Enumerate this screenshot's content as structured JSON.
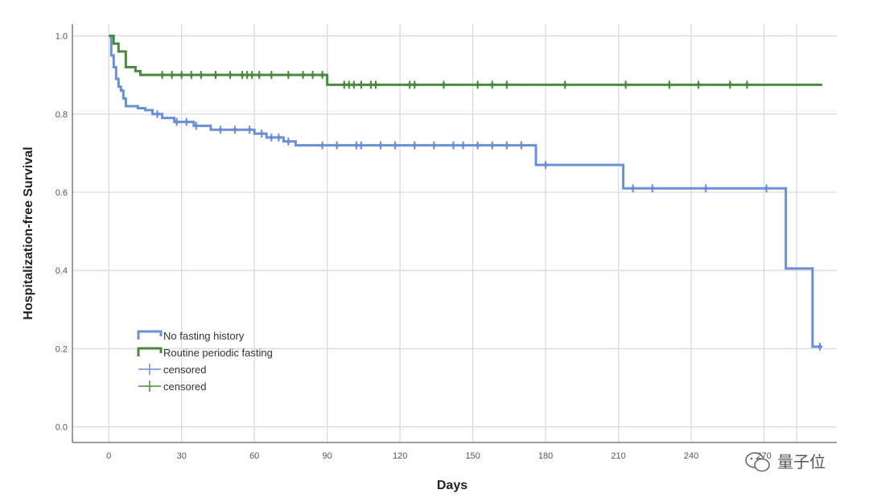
{
  "chart_data": {
    "type": "line",
    "step": true,
    "xlabel": "Days",
    "ylabel": "Hospitalization-free Survival",
    "xlim": [
      -15,
      300
    ],
    "ylim": [
      -0.04,
      1.03
    ],
    "x_ticks": [
      0,
      30,
      60,
      90,
      120,
      150,
      180,
      210,
      240,
      270
    ],
    "y_ticks": [
      0.0,
      0.2,
      0.4,
      0.6,
      0.8,
      1.0
    ],
    "x_tick_labels": [
      "0",
      "30",
      "60",
      "90",
      "120",
      "150",
      "180",
      "210",
      "240",
      "270"
    ],
    "y_tick_labels": [
      "0.0",
      "0.2",
      "0.4",
      "0.6",
      "0.8",
      "1.0"
    ],
    "grid": true,
    "legend_position": "bottom-left",
    "series": [
      {
        "name": "No fasting history",
        "color": "#6b8fd6",
        "steps": [
          [
            0,
            1.0
          ],
          [
            1,
            0.95
          ],
          [
            2,
            0.92
          ],
          [
            3,
            0.89
          ],
          [
            4,
            0.87
          ],
          [
            5,
            0.86
          ],
          [
            6,
            0.84
          ],
          [
            7,
            0.82
          ],
          [
            12,
            0.815
          ],
          [
            15,
            0.81
          ],
          [
            18,
            0.8
          ],
          [
            22,
            0.79
          ],
          [
            27,
            0.78
          ],
          [
            35,
            0.77
          ],
          [
            42,
            0.76
          ],
          [
            60,
            0.75
          ],
          [
            65,
            0.74
          ],
          [
            72,
            0.73
          ],
          [
            77,
            0.72
          ],
          [
            176,
            0.67
          ],
          [
            212,
            0.61
          ],
          [
            279,
            0.405
          ],
          [
            290,
            0.205
          ],
          [
            294,
            0.205
          ]
        ],
        "censored": [
          20,
          28,
          32,
          36,
          46,
          52,
          58,
          63,
          67,
          70,
          74,
          88,
          94,
          102,
          104,
          112,
          118,
          126,
          134,
          142,
          146,
          152,
          158,
          164,
          170,
          180,
          216,
          224,
          246,
          271,
          293
        ]
      },
      {
        "name": "Routine periodic fasting",
        "color": "#4a8a3c",
        "steps": [
          [
            0,
            1.0
          ],
          [
            2,
            0.98
          ],
          [
            4,
            0.96
          ],
          [
            7,
            0.92
          ],
          [
            11,
            0.91
          ],
          [
            13,
            0.9
          ],
          [
            90,
            0.875
          ],
          [
            294,
            0.875
          ]
        ],
        "censored": [
          22,
          26,
          30,
          34,
          38,
          44,
          50,
          55,
          57,
          59,
          62,
          67,
          74,
          80,
          84,
          88,
          97,
          99,
          101,
          104,
          108,
          110,
          124,
          126,
          138,
          152,
          158,
          164,
          188,
          213,
          231,
          243,
          256,
          263
        ]
      }
    ],
    "legend_items": [
      {
        "label": "No fasting history",
        "color": "#6b8fd6",
        "kind": "line"
      },
      {
        "label": "Routine periodic fasting",
        "color": "#4a8a3c",
        "kind": "line"
      },
      {
        "label": "censored",
        "color": "#6b8fd6",
        "kind": "censor"
      },
      {
        "label": "censored",
        "color": "#4a8a3c",
        "kind": "censor"
      }
    ]
  },
  "watermark": {
    "text": "量子位",
    "icon": "wechat-icon"
  }
}
